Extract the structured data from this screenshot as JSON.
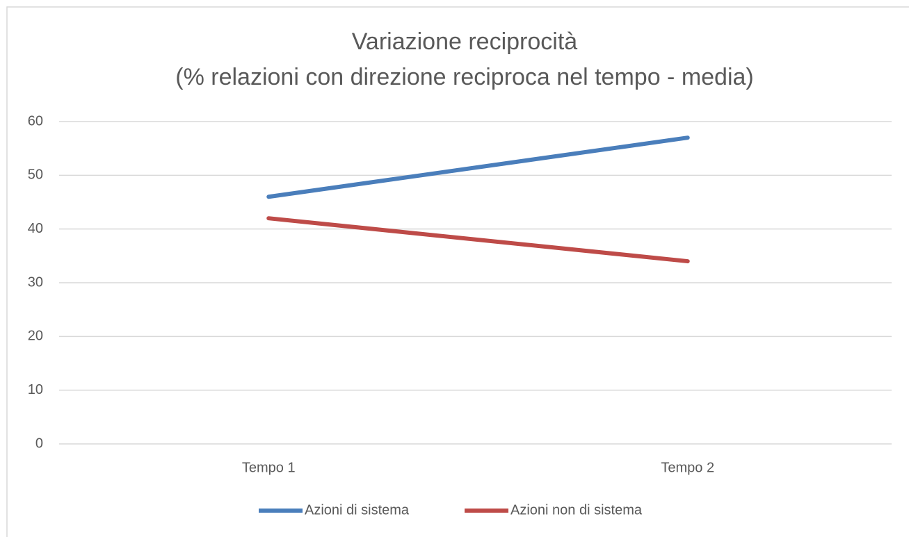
{
  "chart_data": {
    "type": "line",
    "title": "Variazione reciprocità",
    "subtitle": "(% relazioni con direzione reciproca nel tempo - media)",
    "categories": [
      "Tempo 1",
      "Tempo 2"
    ],
    "series": [
      {
        "name": "Azioni di sistema",
        "color": "#4a7ebb",
        "values": [
          46,
          57
        ]
      },
      {
        "name": "Azioni non di sistema",
        "color": "#be4b48",
        "values": [
          42,
          34
        ]
      }
    ],
    "ylim": [
      0,
      60
    ],
    "yticks": [
      0,
      10,
      20,
      30,
      40,
      50,
      60
    ],
    "grid": true,
    "legend": "bottom"
  }
}
